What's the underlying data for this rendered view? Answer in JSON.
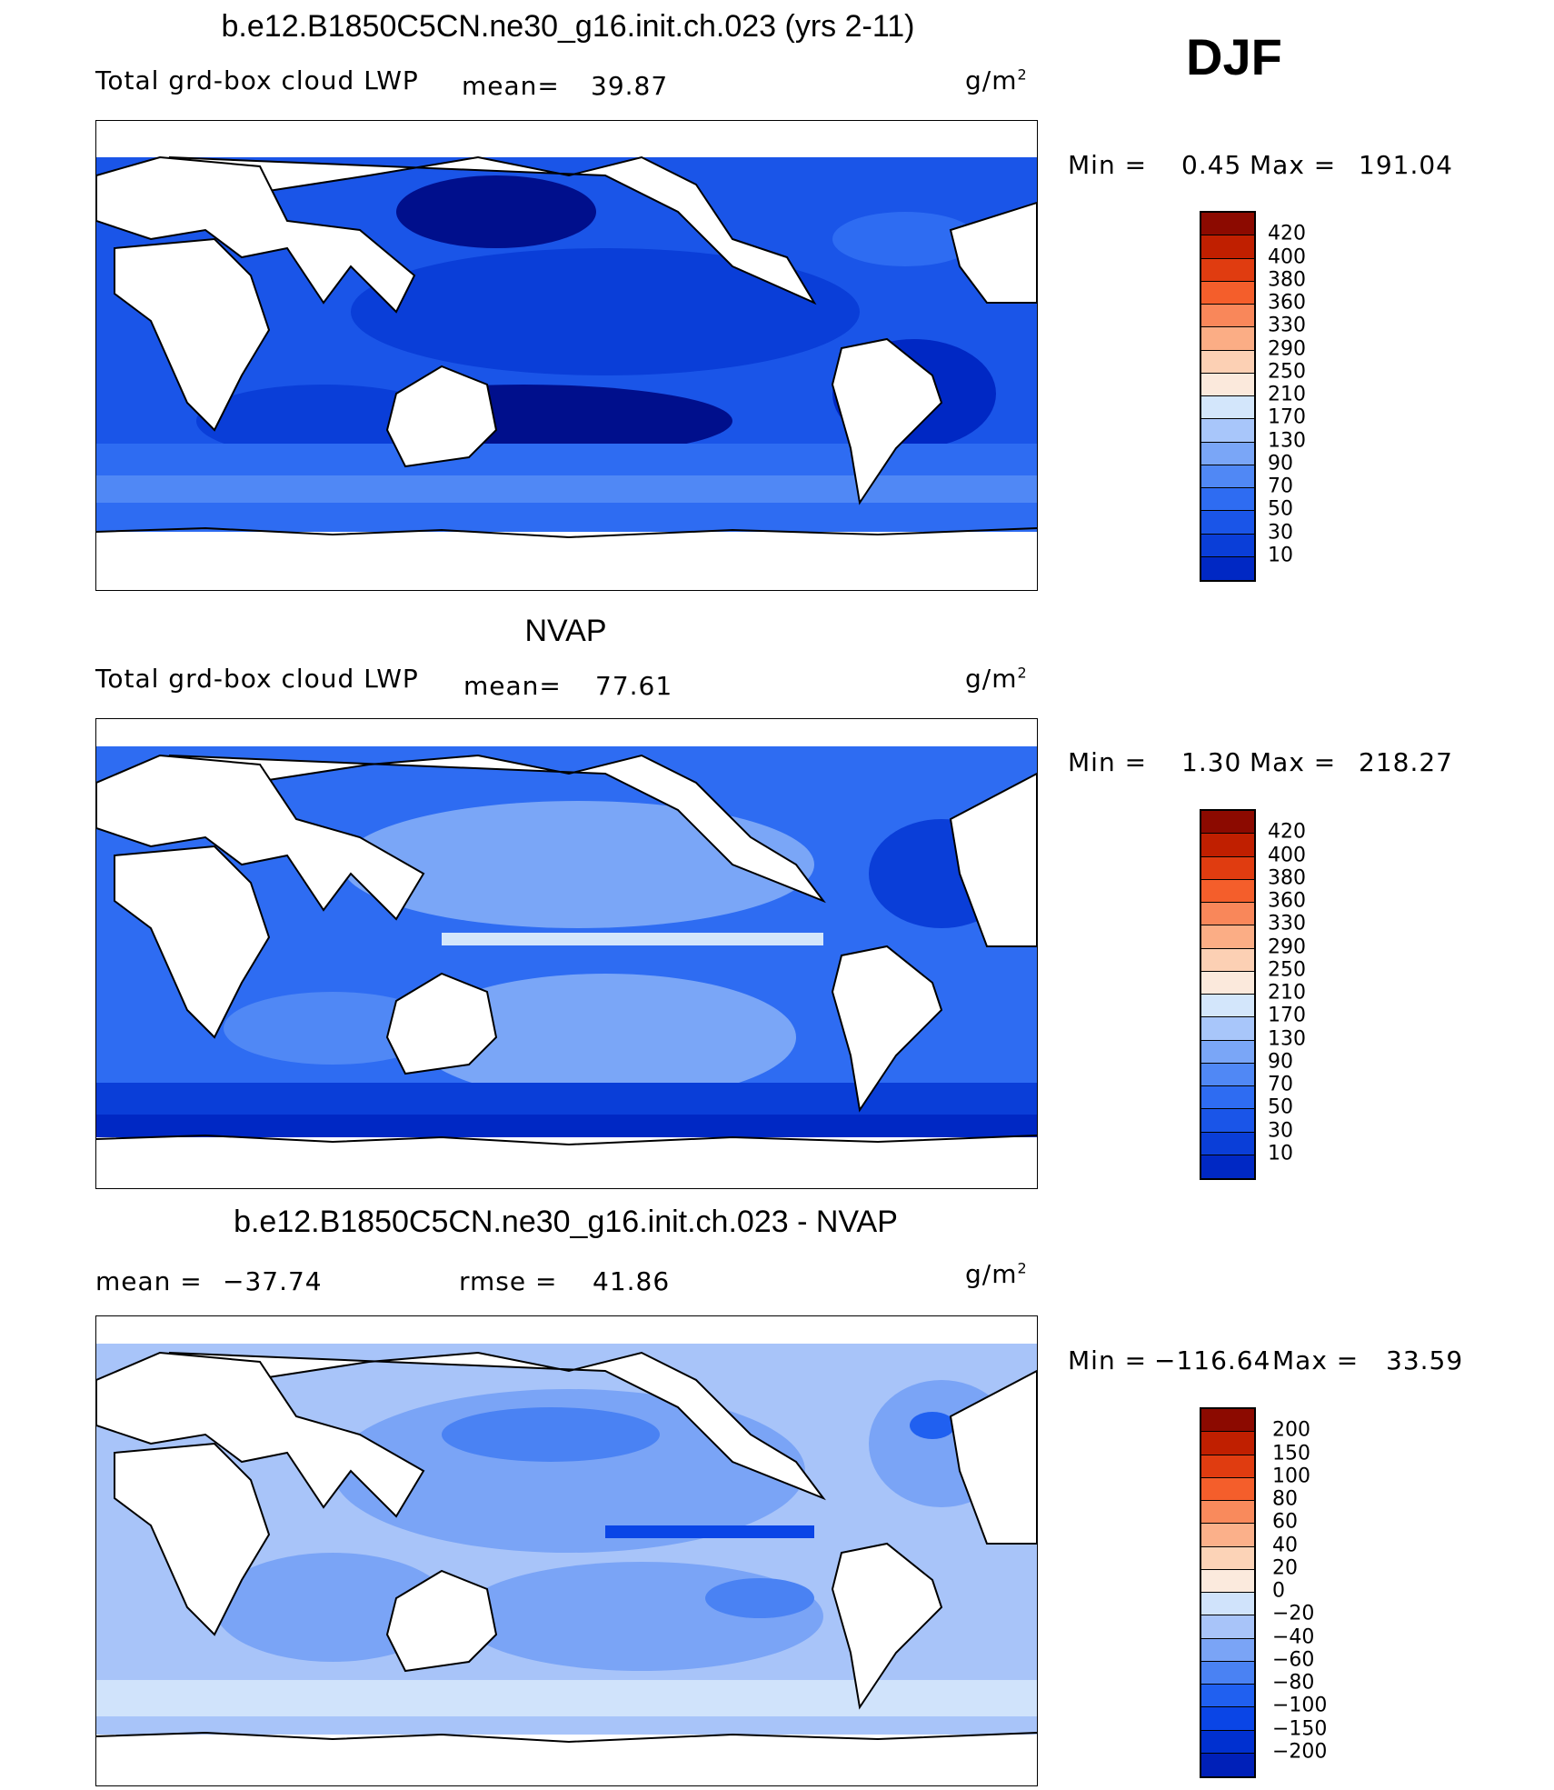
{
  "season": "DJF",
  "colors": {
    "lwp_scale": [
      "#000f8c",
      "#0018a8",
      "#0028c4",
      "#0a3ed8",
      "#1a55e8",
      "#2e6cf2",
      "#5088f5",
      "#7aa6f7",
      "#a8c6fa",
      "#d3e6fb",
      "#fbe9dc",
      "#fcd0b4",
      "#fbad85",
      "#f9875a",
      "#f45e2b",
      "#e03c10",
      "#c01f00",
      "#8c0a00"
    ],
    "diff_scale": [
      "#000f8c",
      "#0020b8",
      "#0030d0",
      "#0a45e6",
      "#2060f0",
      "#4a82f3",
      "#7aa4f6",
      "#a8c4f9",
      "#d0e3fb",
      "#fbeadd",
      "#fcd3b7",
      "#fbb08a",
      "#f98a5c",
      "#f45e2b",
      "#e03c10",
      "#c01f00",
      "#8c0a00"
    ]
  },
  "panels": [
    {
      "id": "model",
      "title": "b.e12.B1850C5CN.ne30_g16.init.ch.023 (yrs 2-11)",
      "variable": "Total grd-box cloud LWP",
      "stat1_label": "mean=",
      "stat1_value": "39.87",
      "units": "g/m",
      "units_sup": "2",
      "min_label": "Min =",
      "min_value": "0.45",
      "max_label": "Max =",
      "max_value": "191.04",
      "levels": [
        "420",
        "400",
        "380",
        "360",
        "330",
        "290",
        "250",
        "210",
        "170",
        "130",
        "90",
        "70",
        "50",
        "30",
        "10"
      ]
    },
    {
      "id": "obs",
      "title": "NVAP",
      "variable": "Total grd-box cloud LWP",
      "stat1_label": "mean=",
      "stat1_value": "77.61",
      "units": "g/m",
      "units_sup": "2",
      "min_label": "Min =",
      "min_value": "1.30",
      "max_label": "Max =",
      "max_value": "218.27",
      "levels": [
        "420",
        "400",
        "380",
        "360",
        "330",
        "290",
        "250",
        "210",
        "170",
        "130",
        "90",
        "70",
        "50",
        "30",
        "10"
      ]
    },
    {
      "id": "diff",
      "title": "b.e12.B1850C5CN.ne30_g16.init.ch.023 - NVAP",
      "stat1_label": "mean =",
      "stat1_value": "−37.74",
      "stat2_label": "rmse =",
      "stat2_value": "41.86",
      "units": "g/m",
      "units_sup": "2",
      "min_label": "Min =",
      "min_value": "−116.64",
      "max_label": "Max =",
      "max_value": "33.59",
      "levels": [
        "200",
        "150",
        "100",
        "80",
        "60",
        "40",
        "20",
        "0",
        "−20",
        "−40",
        "−60",
        "−80",
        "−100",
        "−150",
        "−200"
      ]
    }
  ]
}
